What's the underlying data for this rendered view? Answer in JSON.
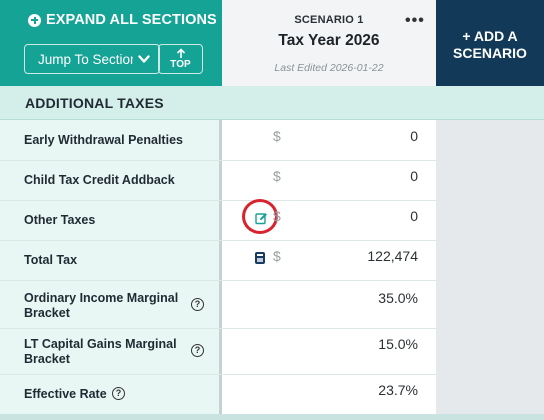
{
  "sidebar_header": {
    "expand_all_label": "EXPAND ALL SECTIONS",
    "jump_select_value": "Jump To Section",
    "top_button_label": "TOP"
  },
  "scenario": {
    "label": "SCENARIO 1",
    "title": "Tax Year 2026",
    "last_edited": "Last Edited 2026-01-22",
    "menu_glyph": "•••"
  },
  "add_scenario": {
    "line1": "+ ADD A",
    "line2": "SCENARIO"
  },
  "section": {
    "title": "ADDITIONAL TAXES"
  },
  "rows": [
    {
      "label": "Early Withdrawal Penalties",
      "currency": "$",
      "value": "0"
    },
    {
      "label": "Child Tax Credit Addback",
      "currency": "$",
      "value": "0"
    },
    {
      "label": "Other Taxes",
      "currency": "$",
      "value": "0"
    },
    {
      "label": "Total Tax",
      "currency": "$",
      "value": "122,474"
    },
    {
      "label_line1": "Ordinary Income Marginal",
      "label_line2": "Bracket",
      "value": "35.0%"
    },
    {
      "label_line1": "LT Capital Gains Marginal",
      "label_line2": "Bracket",
      "value": "15.0%"
    },
    {
      "label": "Effective Rate",
      "value": "23.7%"
    }
  ],
  "help_glyph": "?",
  "colors": {
    "teal": "#15a396",
    "navy": "#123a58",
    "highlight_red": "#d9232e"
  }
}
